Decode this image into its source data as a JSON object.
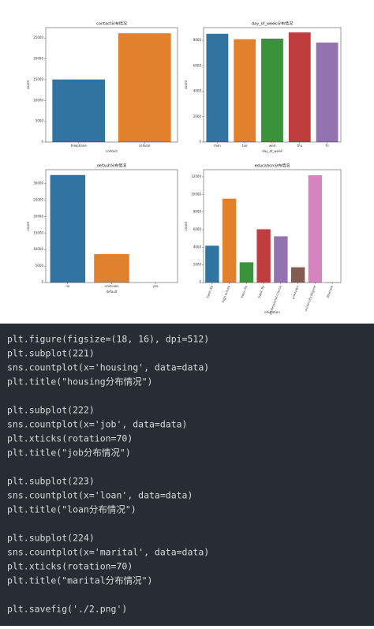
{
  "chart_data": [
    {
      "type": "bar",
      "title": "contact分布情况",
      "xlabel": "contact",
      "ylabel": "count",
      "categories": [
        "telephone",
        "cellular"
      ],
      "values": [
        15044,
        26144
      ],
      "colors": [
        "#3274a1",
        "#e1812c"
      ],
      "ylim": [
        0,
        27500
      ],
      "yticks": [
        0,
        5000,
        10000,
        15000,
        20000,
        25000
      ]
    },
    {
      "type": "bar",
      "title": "day_of_week分布情况",
      "xlabel": "day_of_week",
      "ylabel": "count",
      "categories": [
        "mon",
        "tue",
        "wed",
        "thu",
        "fri"
      ],
      "values": [
        8514,
        8090,
        8134,
        8623,
        7827
      ],
      "colors": [
        "#3274a1",
        "#e1812c",
        "#3a923a",
        "#c03d3e",
        "#9372b2"
      ],
      "ylim": [
        0,
        9000
      ],
      "yticks": [
        0,
        2000,
        4000,
        6000,
        8000
      ]
    },
    {
      "type": "bar",
      "title": "default分布情况",
      "xlabel": "default",
      "ylabel": "count",
      "categories": [
        "no",
        "unknown",
        "yes"
      ],
      "values": [
        32588,
        8597,
        3
      ],
      "colors": [
        "#3274a1",
        "#e1812c",
        "#3a923a"
      ],
      "ylim": [
        0,
        34200
      ],
      "yticks": [
        0,
        5000,
        10000,
        15000,
        20000,
        25000,
        30000
      ]
    },
    {
      "type": "bar",
      "title": "education分布情况",
      "xlabel": "education",
      "ylabel": "count",
      "rotate_xticks": true,
      "categories": [
        "basic.4y",
        "high.school",
        "basic.6y",
        "basic.9y",
        "professional.course",
        "unknown",
        "university.degree",
        "illiterate"
      ],
      "values": [
        4176,
        9515,
        2292,
        6045,
        5243,
        1731,
        12168,
        18
      ],
      "colors": [
        "#3274a1",
        "#e1812c",
        "#3a923a",
        "#c03d3e",
        "#9372b2",
        "#845b53",
        "#d684bd",
        "#7f7f7f"
      ],
      "ylim": [
        0,
        12800
      ],
      "yticks": [
        0,
        2000,
        4000,
        6000,
        8000,
        10000,
        12000
      ]
    }
  ],
  "code": {
    "blocks": [
      [
        "plt.figure(figsize=(18, 16), dpi=512)",
        "plt.subplot(221)",
        "sns.countplot(x='housing', data=data)",
        "plt.title(\"housing分布情况\")"
      ],
      [
        "plt.subplot(222)",
        "sns.countplot(x='job', data=data)",
        "plt.xticks(rotation=70)",
        "plt.title(\"job分布情况\")"
      ],
      [
        "plt.subplot(223)",
        "sns.countplot(x='loan', data=data)",
        "plt.title(\"loan分布情况\")"
      ],
      [
        "plt.subplot(224)",
        "sns.countplot(x='marital', data=data)",
        "plt.xticks(rotation=70)",
        "plt.title(\"marital分布情况\")"
      ],
      [
        "plt.savefig('./2.png')"
      ]
    ]
  }
}
